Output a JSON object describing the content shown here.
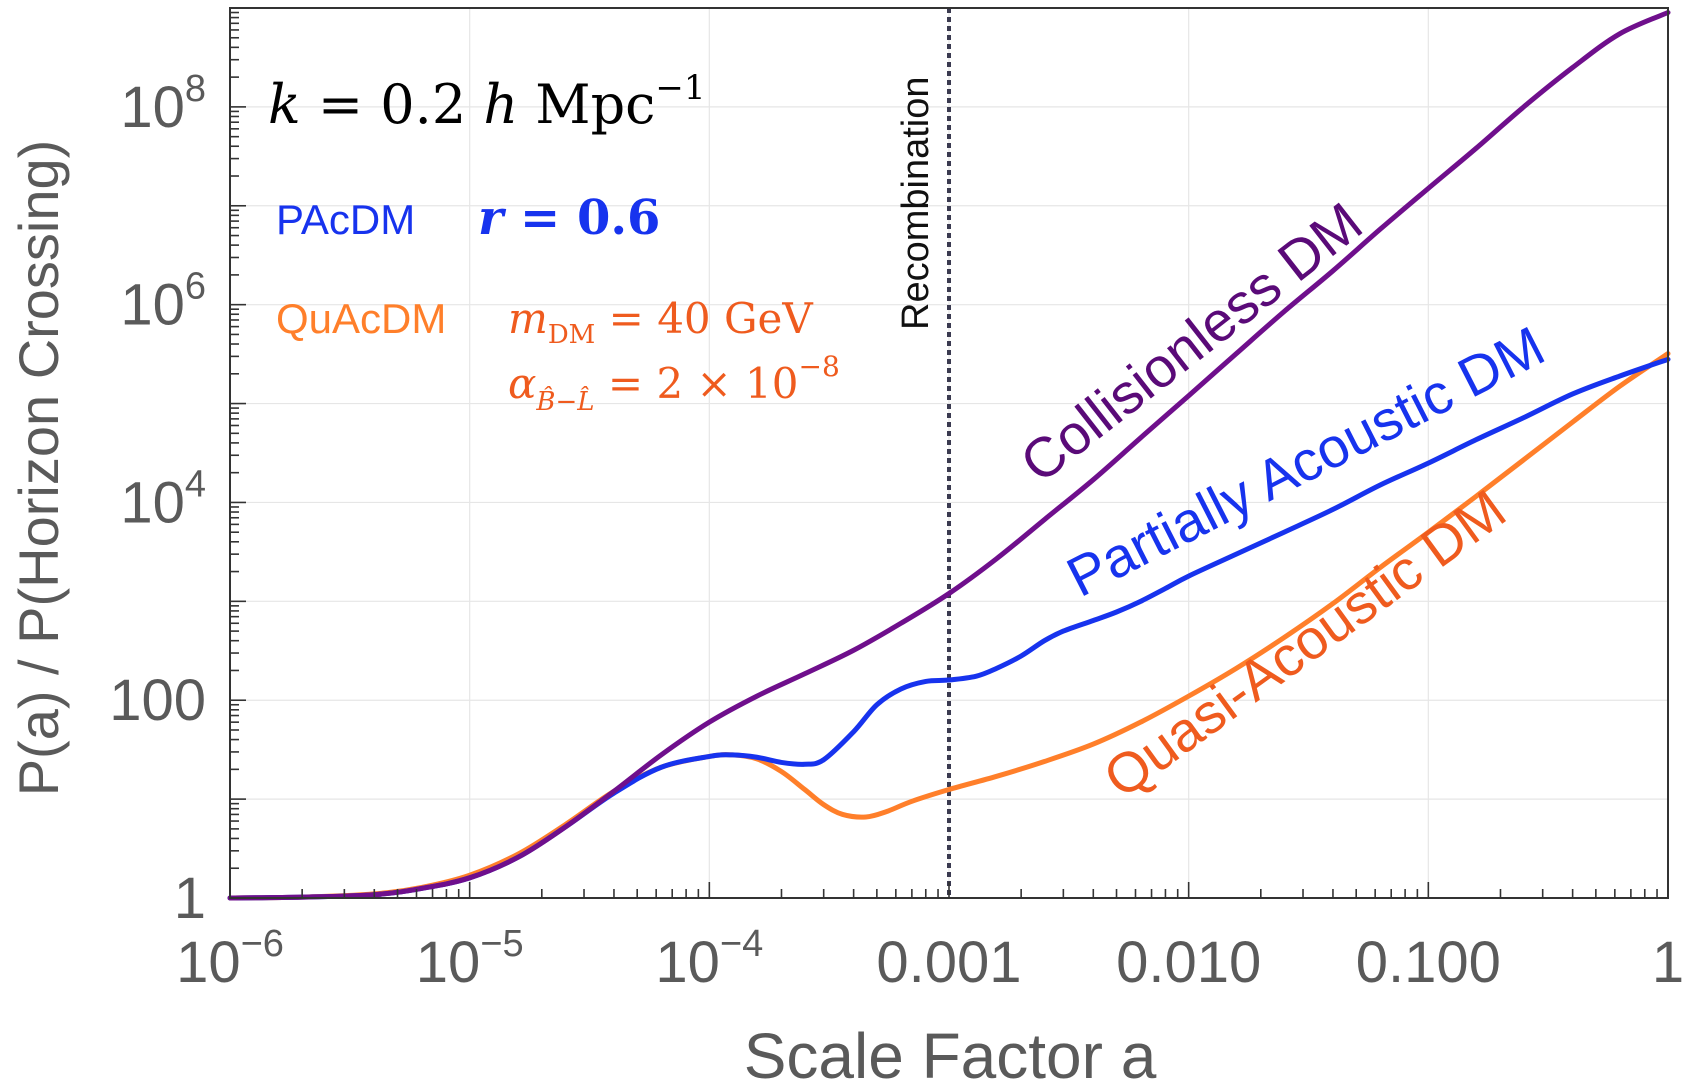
{
  "chart_data": {
    "type": "line",
    "xlabel": "Scale Factor a",
    "ylabel": "P(a) / P(Horizon Crossing)",
    "xscale": "log",
    "yscale": "log",
    "xlim": [
      1e-06,
      1
    ],
    "ylim": [
      1,
      1000000000
    ],
    "grid": true,
    "x_ticks": [
      {
        "value": 1e-06,
        "base": "10",
        "exp": "−6"
      },
      {
        "value": 1e-05,
        "base": "10",
        "exp": "−5"
      },
      {
        "value": 0.0001,
        "base": "10",
        "exp": "−4"
      },
      {
        "value": 0.001,
        "base": "0.001",
        "exp": ""
      },
      {
        "value": 0.01,
        "base": "0.010",
        "exp": ""
      },
      {
        "value": 0.1,
        "base": "0.100",
        "exp": ""
      },
      {
        "value": 1,
        "base": "1",
        "exp": ""
      }
    ],
    "y_ticks": [
      {
        "value": 1,
        "base": "1",
        "exp": ""
      },
      {
        "value": 100,
        "base": "100",
        "exp": ""
      },
      {
        "value": 10000,
        "base": "10",
        "exp": "4"
      },
      {
        "value": 1000000,
        "base": "10",
        "exp": "6"
      },
      {
        "value": 100000000,
        "base": "10",
        "exp": "8"
      }
    ],
    "series": [
      {
        "name": "Collisionless DM",
        "color": "#6f0f8c",
        "points": [
          [
            1e-06,
            1.0
          ],
          [
            2e-06,
            1.02
          ],
          [
            4e-06,
            1.08
          ],
          [
            6.3e-06,
            1.25
          ],
          [
            1e-05,
            1.6
          ],
          [
            1.6e-05,
            2.6
          ],
          [
            2.5e-05,
            5.2
          ],
          [
            4e-05,
            12
          ],
          [
            6.3e-05,
            28
          ],
          [
            0.0001,
            60
          ],
          [
            0.000158,
            110
          ],
          [
            0.00025,
            185
          ],
          [
            0.0004,
            320
          ],
          [
            0.00063,
            600
          ],
          [
            0.001,
            1200
          ],
          [
            0.00158,
            2700
          ],
          [
            0.0025,
            6700
          ],
          [
            0.004,
            17000
          ],
          [
            0.0063,
            45000
          ],
          [
            0.01,
            120000
          ],
          [
            0.0158,
            320000
          ],
          [
            0.025,
            850000
          ],
          [
            0.04,
            2200000
          ],
          [
            0.063,
            5800000
          ],
          [
            0.1,
            15000000
          ],
          [
            0.158,
            38000000
          ],
          [
            0.25,
            100000000
          ],
          [
            0.4,
            250000000
          ],
          [
            0.63,
            550000000
          ],
          [
            1.0,
            900000000
          ]
        ]
      },
      {
        "name": "Partially Acoustic DM",
        "color": "#1733ee",
        "points": [
          [
            1e-06,
            1.0
          ],
          [
            2e-06,
            1.02
          ],
          [
            4e-06,
            1.08
          ],
          [
            6.3e-06,
            1.25
          ],
          [
            1e-05,
            1.6
          ],
          [
            1.6e-05,
            2.6
          ],
          [
            2.5e-05,
            5.2
          ],
          [
            4e-05,
            11.5
          ],
          [
            6.3e-05,
            21
          ],
          [
            0.0001,
            27
          ],
          [
            0.000125,
            28
          ],
          [
            0.000158,
            26.5
          ],
          [
            0.0002,
            23.5
          ],
          [
            0.00025,
            22.5
          ],
          [
            0.0003,
            25
          ],
          [
            0.0004,
            48
          ],
          [
            0.0005,
            90
          ],
          [
            0.00063,
            130
          ],
          [
            0.0008,
            155
          ],
          [
            0.001,
            160
          ],
          [
            0.0013,
            175
          ],
          [
            0.00158,
            210
          ],
          [
            0.002,
            280
          ],
          [
            0.0025,
            400
          ],
          [
            0.003,
            500
          ],
          [
            0.004,
            640
          ],
          [
            0.005,
            780
          ],
          [
            0.0063,
            1000
          ],
          [
            0.008,
            1350
          ],
          [
            0.01,
            1800
          ],
          [
            0.0158,
            3000
          ],
          [
            0.025,
            5000
          ],
          [
            0.04,
            8500
          ],
          [
            0.063,
            15000
          ],
          [
            0.1,
            25000
          ],
          [
            0.158,
            43000
          ],
          [
            0.25,
            72000
          ],
          [
            0.4,
            125000
          ],
          [
            0.63,
            190000
          ],
          [
            1.0,
            280000
          ]
        ]
      },
      {
        "name": "Quasi-Acoustic DM",
        "color": "#ff7f2a",
        "points": [
          [
            1e-06,
            1.0
          ],
          [
            2e-06,
            1.02
          ],
          [
            4e-06,
            1.1
          ],
          [
            6.3e-06,
            1.28
          ],
          [
            1e-05,
            1.7
          ],
          [
            1.6e-05,
            2.8
          ],
          [
            2.5e-05,
            5.5
          ],
          [
            4e-05,
            12
          ],
          [
            6.3e-05,
            21
          ],
          [
            0.0001,
            27
          ],
          [
            0.000125,
            28
          ],
          [
            0.000158,
            25.5
          ],
          [
            0.0002,
            19
          ],
          [
            0.00025,
            12.5
          ],
          [
            0.0003,
            8.8
          ],
          [
            0.00036,
            7.0
          ],
          [
            0.00045,
            6.6
          ],
          [
            0.00055,
            7.5
          ],
          [
            0.0007,
            9.5
          ],
          [
            0.001,
            12.5
          ],
          [
            0.00158,
            17
          ],
          [
            0.0025,
            24
          ],
          [
            0.004,
            36
          ],
          [
            0.0063,
            60
          ],
          [
            0.01,
            110
          ],
          [
            0.0158,
            210
          ],
          [
            0.025,
            430
          ],
          [
            0.04,
            950
          ],
          [
            0.063,
            2200
          ],
          [
            0.1,
            5000
          ],
          [
            0.158,
            11500
          ],
          [
            0.25,
            27000
          ],
          [
            0.4,
            65000
          ],
          [
            0.63,
            150000
          ],
          [
            1.0,
            320000
          ]
        ]
      }
    ],
    "vline": {
      "x": 0.001,
      "label": "Recombination",
      "color": "#3a3a50"
    },
    "labels": {
      "collisionless": "Collisionless DM",
      "partially": "Partially Acoustic DM",
      "quasi": "Quasi-Acoustic DM"
    },
    "legend": {
      "k_sym": "k",
      "k_eq": " = 0.2 ",
      "k_h": "h",
      "k_unit": " Mpc",
      "k_exp": "−1",
      "pacdm_name": "PAcDM",
      "pacdm_r": "r",
      "pacdm_val": " = 0.6",
      "quacdm_name": "QuAcDM",
      "quacdm_m": "m",
      "quacdm_sub": "DM",
      "quacdm_mval": " = 40 GeV",
      "alpha_sym": "α",
      "alpha_sub": "B̂−L̂",
      "alpha_val": " = 2 × 10",
      "alpha_exp": "−8"
    },
    "colors": {
      "pacdm": "#1733ee",
      "quacdm": "#ef5b1e",
      "text": "#000000"
    }
  }
}
